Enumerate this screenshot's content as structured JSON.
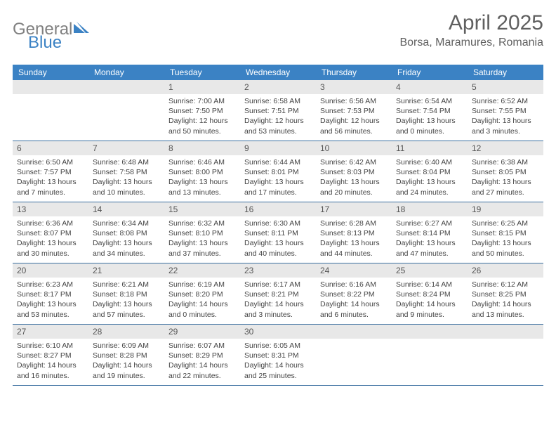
{
  "logo": {
    "word1": "General",
    "word2": "Blue"
  },
  "title": "April 2025",
  "location": "Borsa, Maramures, Romania",
  "colors": {
    "header_bg": "#3b82c4",
    "header_text": "#ffffff",
    "daynum_bg": "#e8e8e8",
    "week_border": "#3b6fa0",
    "title_color": "#606060",
    "logo_gray": "#808080",
    "logo_blue": "#3b82c4",
    "body_text": "#444444"
  },
  "dayNames": [
    "Sunday",
    "Monday",
    "Tuesday",
    "Wednesday",
    "Thursday",
    "Friday",
    "Saturday"
  ],
  "weeks": [
    [
      null,
      null,
      {
        "n": "1",
        "sr": "7:00 AM",
        "ss": "7:50 PM",
        "dl": "12 hours and 50 minutes."
      },
      {
        "n": "2",
        "sr": "6:58 AM",
        "ss": "7:51 PM",
        "dl": "12 hours and 53 minutes."
      },
      {
        "n": "3",
        "sr": "6:56 AM",
        "ss": "7:53 PM",
        "dl": "12 hours and 56 minutes."
      },
      {
        "n": "4",
        "sr": "6:54 AM",
        "ss": "7:54 PM",
        "dl": "13 hours and 0 minutes."
      },
      {
        "n": "5",
        "sr": "6:52 AM",
        "ss": "7:55 PM",
        "dl": "13 hours and 3 minutes."
      }
    ],
    [
      {
        "n": "6",
        "sr": "6:50 AM",
        "ss": "7:57 PM",
        "dl": "13 hours and 7 minutes."
      },
      {
        "n": "7",
        "sr": "6:48 AM",
        "ss": "7:58 PM",
        "dl": "13 hours and 10 minutes."
      },
      {
        "n": "8",
        "sr": "6:46 AM",
        "ss": "8:00 PM",
        "dl": "13 hours and 13 minutes."
      },
      {
        "n": "9",
        "sr": "6:44 AM",
        "ss": "8:01 PM",
        "dl": "13 hours and 17 minutes."
      },
      {
        "n": "10",
        "sr": "6:42 AM",
        "ss": "8:03 PM",
        "dl": "13 hours and 20 minutes."
      },
      {
        "n": "11",
        "sr": "6:40 AM",
        "ss": "8:04 PM",
        "dl": "13 hours and 24 minutes."
      },
      {
        "n": "12",
        "sr": "6:38 AM",
        "ss": "8:05 PM",
        "dl": "13 hours and 27 minutes."
      }
    ],
    [
      {
        "n": "13",
        "sr": "6:36 AM",
        "ss": "8:07 PM",
        "dl": "13 hours and 30 minutes."
      },
      {
        "n": "14",
        "sr": "6:34 AM",
        "ss": "8:08 PM",
        "dl": "13 hours and 34 minutes."
      },
      {
        "n": "15",
        "sr": "6:32 AM",
        "ss": "8:10 PM",
        "dl": "13 hours and 37 minutes."
      },
      {
        "n": "16",
        "sr": "6:30 AM",
        "ss": "8:11 PM",
        "dl": "13 hours and 40 minutes."
      },
      {
        "n": "17",
        "sr": "6:28 AM",
        "ss": "8:13 PM",
        "dl": "13 hours and 44 minutes."
      },
      {
        "n": "18",
        "sr": "6:27 AM",
        "ss": "8:14 PM",
        "dl": "13 hours and 47 minutes."
      },
      {
        "n": "19",
        "sr": "6:25 AM",
        "ss": "8:15 PM",
        "dl": "13 hours and 50 minutes."
      }
    ],
    [
      {
        "n": "20",
        "sr": "6:23 AM",
        "ss": "8:17 PM",
        "dl": "13 hours and 53 minutes."
      },
      {
        "n": "21",
        "sr": "6:21 AM",
        "ss": "8:18 PM",
        "dl": "13 hours and 57 minutes."
      },
      {
        "n": "22",
        "sr": "6:19 AM",
        "ss": "8:20 PM",
        "dl": "14 hours and 0 minutes."
      },
      {
        "n": "23",
        "sr": "6:17 AM",
        "ss": "8:21 PM",
        "dl": "14 hours and 3 minutes."
      },
      {
        "n": "24",
        "sr": "6:16 AM",
        "ss": "8:22 PM",
        "dl": "14 hours and 6 minutes."
      },
      {
        "n": "25",
        "sr": "6:14 AM",
        "ss": "8:24 PM",
        "dl": "14 hours and 9 minutes."
      },
      {
        "n": "26",
        "sr": "6:12 AM",
        "ss": "8:25 PM",
        "dl": "14 hours and 13 minutes."
      }
    ],
    [
      {
        "n": "27",
        "sr": "6:10 AM",
        "ss": "8:27 PM",
        "dl": "14 hours and 16 minutes."
      },
      {
        "n": "28",
        "sr": "6:09 AM",
        "ss": "8:28 PM",
        "dl": "14 hours and 19 minutes."
      },
      {
        "n": "29",
        "sr": "6:07 AM",
        "ss": "8:29 PM",
        "dl": "14 hours and 22 minutes."
      },
      {
        "n": "30",
        "sr": "6:05 AM",
        "ss": "8:31 PM",
        "dl": "14 hours and 25 minutes."
      },
      null,
      null,
      null
    ]
  ],
  "labels": {
    "sunrise": "Sunrise: ",
    "sunset": "Sunset: ",
    "daylight": "Daylight: "
  }
}
